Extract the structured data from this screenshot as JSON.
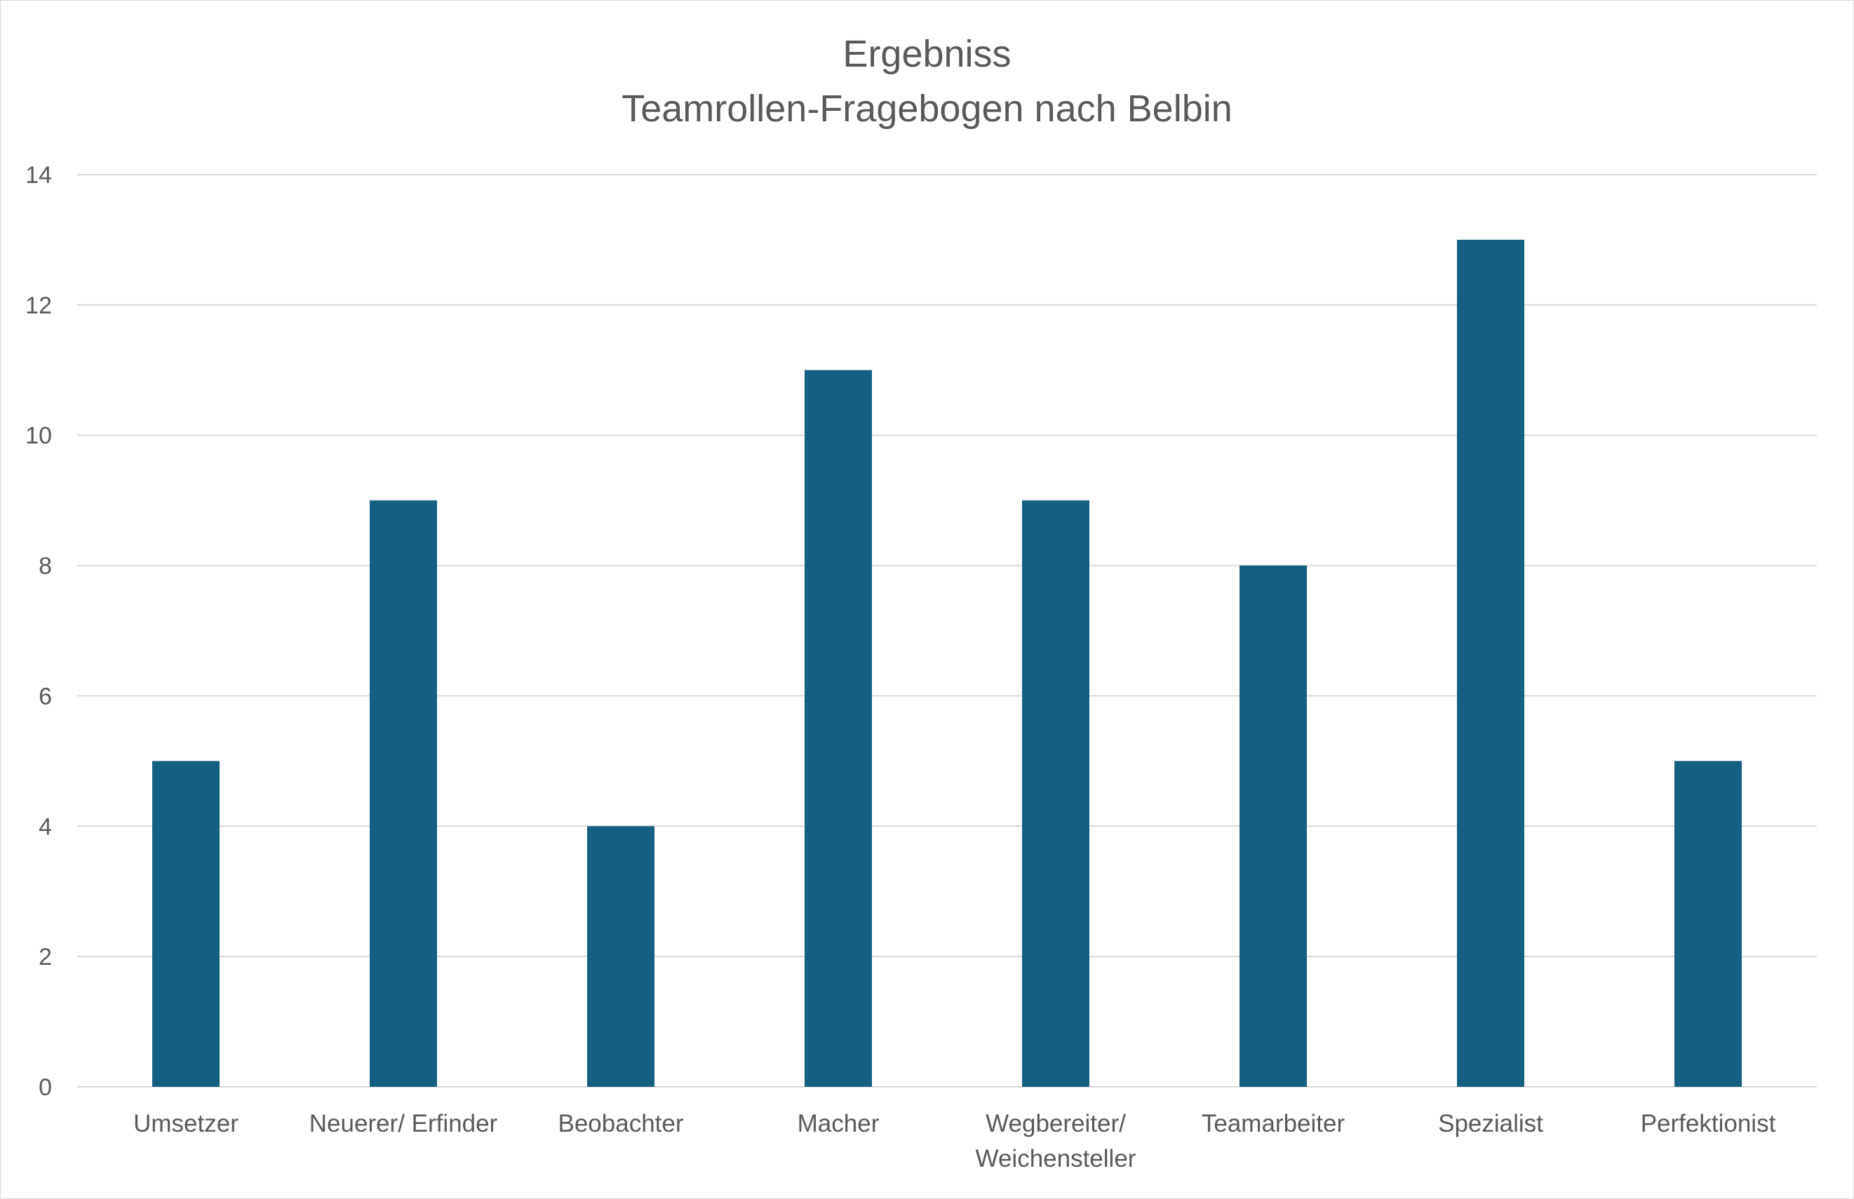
{
  "chart_data": {
    "type": "bar",
    "title": "Ergebniss",
    "subtitle": "Teamrollen-Fragebogen nach Belbin",
    "xlabel": "",
    "ylabel": "",
    "categories": [
      [
        "Umsetzer"
      ],
      [
        "Neuerer/ Erfinder"
      ],
      [
        "Beobachter"
      ],
      [
        "Macher"
      ],
      [
        "Wegbereiter/",
        "Weichensteller"
      ],
      [
        "Teamarbeiter"
      ],
      [
        "Spezialist"
      ],
      [
        "Perfektionist"
      ]
    ],
    "values": [
      5,
      9,
      4,
      11,
      9,
      8,
      13,
      5
    ],
    "ylim": [
      0,
      14
    ],
    "yticks": [
      "0",
      "2",
      "4",
      "6",
      "8",
      "10",
      "12",
      "14"
    ],
    "grid": true,
    "legend": "none",
    "bar_color": "#156082",
    "grid_color": "#d9d9d9",
    "text_color": "#595959"
  }
}
